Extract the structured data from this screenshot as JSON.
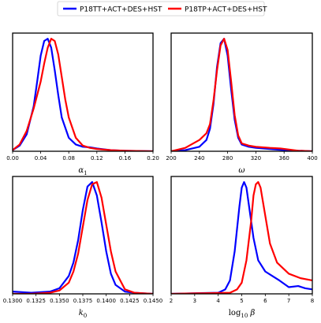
{
  "chart_data": {
    "type": "line",
    "legend": {
      "placement": "top-center",
      "entries": [
        {
          "name": "P18TT+ACT+DES+HST",
          "color": "#0000ff"
        },
        {
          "name": "P18TP+ACT+DES+HST",
          "color": "#ff0000"
        }
      ]
    },
    "panels": [
      {
        "xlabel": "α1",
        "xlim": [
          0.0,
          0.2
        ],
        "ylim": [
          0,
          1.05
        ],
        "xticks": [
          0.0,
          0.04,
          0.08,
          0.12,
          0.16,
          0.2
        ],
        "xtick_labels": [
          "0.00",
          "0.04",
          "0.08",
          "0.12",
          "0.16",
          "0.20"
        ],
        "grid": false,
        "series": [
          {
            "name": "P18TT+ACT+DES+HST",
            "color": "#0000ff",
            "x": [
              0.0,
              0.01,
              0.02,
              0.03,
              0.035,
              0.04,
              0.045,
              0.05,
              0.055,
              0.06,
              0.065,
              0.07,
              0.08,
              0.09,
              0.1,
              0.11,
              0.12,
              0.14,
              0.16,
              0.2
            ],
            "y": [
              0.01,
              0.05,
              0.15,
              0.4,
              0.62,
              0.85,
              0.98,
              1.0,
              0.92,
              0.72,
              0.5,
              0.3,
              0.12,
              0.06,
              0.04,
              0.035,
              0.025,
              0.01,
              0.005,
              0.0
            ]
          },
          {
            "name": "P18TP+ACT+DES+HST",
            "color": "#ff0000",
            "x": [
              0.0,
              0.01,
              0.02,
              0.03,
              0.04,
              0.045,
              0.05,
              0.055,
              0.06,
              0.065,
              0.07,
              0.075,
              0.08,
              0.09,
              0.1,
              0.11,
              0.12,
              0.14,
              0.16,
              0.2
            ],
            "y": [
              0.01,
              0.06,
              0.18,
              0.38,
              0.62,
              0.78,
              0.92,
              1.0,
              0.98,
              0.86,
              0.66,
              0.46,
              0.3,
              0.12,
              0.05,
              0.03,
              0.02,
              0.01,
              0.005,
              0.0
            ]
          }
        ]
      },
      {
        "xlabel": "ω",
        "xlim": [
          200,
          400
        ],
        "ylim": [
          0,
          1.05
        ],
        "xticks": [
          200,
          240,
          280,
          320,
          360,
          400
        ],
        "xtick_labels": [
          "200",
          "240",
          "280",
          "320",
          "360",
          "400"
        ],
        "grid": false,
        "series": [
          {
            "name": "P18TT+ACT+DES+HST",
            "color": "#0000ff",
            "x": [
              200,
              220,
              240,
              250,
              255,
              260,
              265,
              270,
              275,
              280,
              285,
              290,
              295,
              300,
              310,
              320,
              340,
              360,
              380,
              400
            ],
            "y": [
              0.0,
              0.01,
              0.04,
              0.1,
              0.2,
              0.42,
              0.75,
              0.96,
              1.0,
              0.85,
              0.55,
              0.28,
              0.12,
              0.06,
              0.04,
              0.03,
              0.02,
              0.01,
              0.005,
              0.0
            ]
          },
          {
            "name": "P18TP+ACT+DES+HST",
            "color": "#ff0000",
            "x": [
              200,
              220,
              240,
              250,
              255,
              260,
              265,
              270,
              275,
              280,
              285,
              290,
              295,
              300,
              310,
              320,
              340,
              355,
              380,
              400
            ],
            "y": [
              0.0,
              0.03,
              0.1,
              0.16,
              0.24,
              0.45,
              0.72,
              0.94,
              1.0,
              0.9,
              0.62,
              0.32,
              0.14,
              0.07,
              0.05,
              0.04,
              0.03,
              0.025,
              0.005,
              0.0
            ]
          }
        ]
      },
      {
        "xlabel": "k0",
        "xlim": [
          0.13,
          0.145
        ],
        "ylim": [
          0,
          1.05
        ],
        "xticks": [
          0.13,
          0.1325,
          0.135,
          0.1375,
          0.14,
          0.1425,
          0.145
        ],
        "xtick_labels": [
          "0.1300",
          "0.1325",
          "0.1350",
          "0.1375",
          "0.1400",
          "0.1425",
          "0.1450"
        ],
        "grid": false,
        "series": [
          {
            "name": "P18TT+ACT+DES+HST",
            "color": "#0000ff",
            "x": [
              0.13,
              0.132,
              0.134,
              0.135,
              0.136,
              0.1365,
              0.137,
              0.1375,
              0.138,
              0.1385,
              0.139,
              0.1395,
              0.14,
              0.1405,
              0.141,
              0.142,
              0.143,
              0.144,
              0.145
            ],
            "y": [
              0.02,
              0.01,
              0.02,
              0.05,
              0.16,
              0.28,
              0.48,
              0.75,
              0.96,
              1.0,
              0.88,
              0.64,
              0.38,
              0.18,
              0.08,
              0.02,
              0.01,
              0.005,
              0.0
            ]
          },
          {
            "name": "P18TP+ACT+DES+HST",
            "color": "#ff0000",
            "x": [
              0.13,
              0.132,
              0.134,
              0.135,
              0.136,
              0.1365,
              0.137,
              0.1375,
              0.138,
              0.1385,
              0.139,
              0.1395,
              0.14,
              0.1405,
              0.141,
              0.142,
              0.143,
              0.144,
              0.145
            ],
            "y": [
              0.0,
              0.0,
              0.01,
              0.03,
              0.1,
              0.2,
              0.36,
              0.6,
              0.84,
              0.98,
              1.0,
              0.86,
              0.62,
              0.38,
              0.2,
              0.04,
              0.01,
              0.005,
              0.0
            ]
          }
        ]
      },
      {
        "xlabel": "log10 β",
        "xlim": [
          2,
          8
        ],
        "ylim": [
          0,
          1.05
        ],
        "xticks": [
          2,
          3,
          4,
          5,
          6,
          7,
          8
        ],
        "xtick_labels": [
          "2",
          "3",
          "4",
          "5",
          "6",
          "7",
          "8"
        ],
        "grid": false,
        "series": [
          {
            "name": "P18TT+ACT+DES+HST",
            "color": "#0000ff",
            "x": [
              2.0,
              4.0,
              4.3,
              4.5,
              4.7,
              4.9,
              5.0,
              5.1,
              5.2,
              5.3,
              5.5,
              5.7,
              6.0,
              6.3,
              6.6,
              7.0,
              7.4,
              7.7,
              8.0
            ],
            "y": [
              0.0,
              0.01,
              0.04,
              0.12,
              0.38,
              0.78,
              0.95,
              1.0,
              0.95,
              0.8,
              0.5,
              0.3,
              0.2,
              0.16,
              0.12,
              0.06,
              0.07,
              0.05,
              0.04
            ]
          },
          {
            "name": "P18TP+ACT+DES+HST",
            "color": "#ff0000",
            "x": [
              2.0,
              4.5,
              4.8,
              5.0,
              5.2,
              5.4,
              5.5,
              5.6,
              5.7,
              5.8,
              6.0,
              6.2,
              6.5,
              7.0,
              7.5,
              8.0
            ],
            "y": [
              0.0,
              0.01,
              0.04,
              0.1,
              0.3,
              0.65,
              0.88,
              0.98,
              1.0,
              0.95,
              0.7,
              0.45,
              0.28,
              0.18,
              0.14,
              0.12
            ]
          }
        ]
      }
    ]
  }
}
